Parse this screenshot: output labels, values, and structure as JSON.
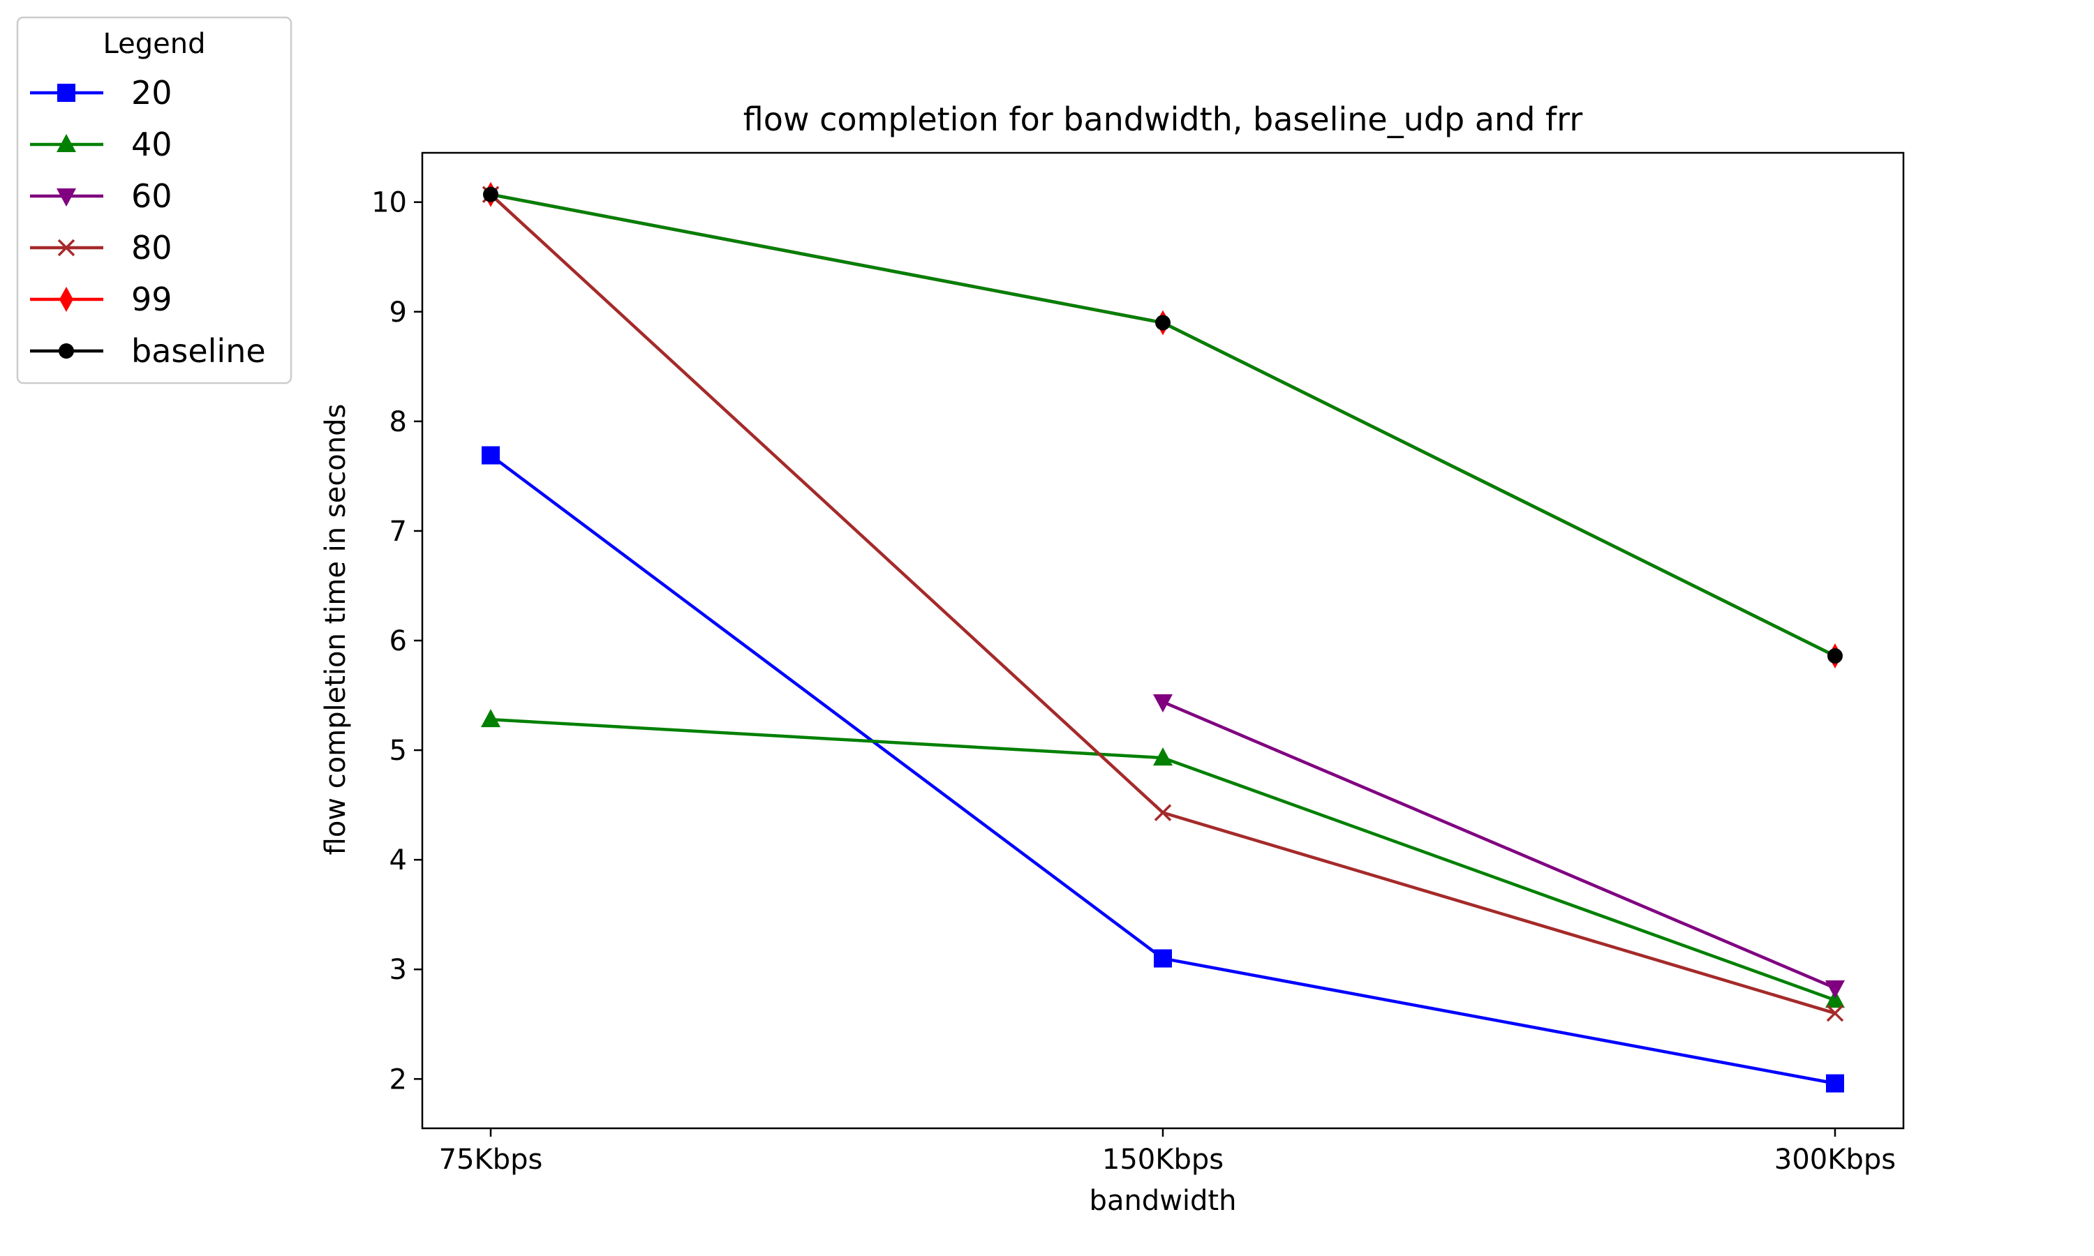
{
  "chart_data": {
    "type": "line",
    "title": "flow completion for bandwidth, baseline_udp and frr",
    "xlabel": "bandwidth",
    "ylabel": "flow completion time in seconds",
    "categories": [
      "75Kbps",
      "150Kbps",
      "300Kbps"
    ],
    "ylim": [
      1.55,
      10.45
    ],
    "yticks": [
      2,
      3,
      4,
      5,
      6,
      7,
      8,
      9,
      10
    ],
    "grid": false,
    "legend": {
      "title": "Legend",
      "placement": "upper-left, outside plot"
    },
    "series": [
      {
        "name": "20",
        "color": "#0000ff",
        "marker": "square",
        "values": [
          7.69,
          3.1,
          1.96
        ]
      },
      {
        "name": "40",
        "color": "#008000",
        "marker": "triangle-up",
        "values": [
          5.28,
          4.93,
          2.72
        ]
      },
      {
        "name": "60",
        "color": "#800080",
        "marker": "triangle-down",
        "values": [
          null,
          5.44,
          2.83
        ]
      },
      {
        "name": "80",
        "color": "#a52a2a",
        "marker": "x",
        "values": [
          10.07,
          4.43,
          2.6
        ]
      },
      {
        "name": "99",
        "color": "#ff0000",
        "marker": "thin-diamond",
        "values": [
          10.07,
          8.9,
          5.86
        ]
      },
      {
        "name": "baseline",
        "color": "#000000",
        "marker": "circle",
        "values": [
          10.07,
          8.9,
          5.86
        ]
      },
      {
        "name": "",
        "color": "#008000",
        "marker": "none",
        "values": [
          10.07,
          8.9,
          5.86
        ]
      }
    ]
  }
}
